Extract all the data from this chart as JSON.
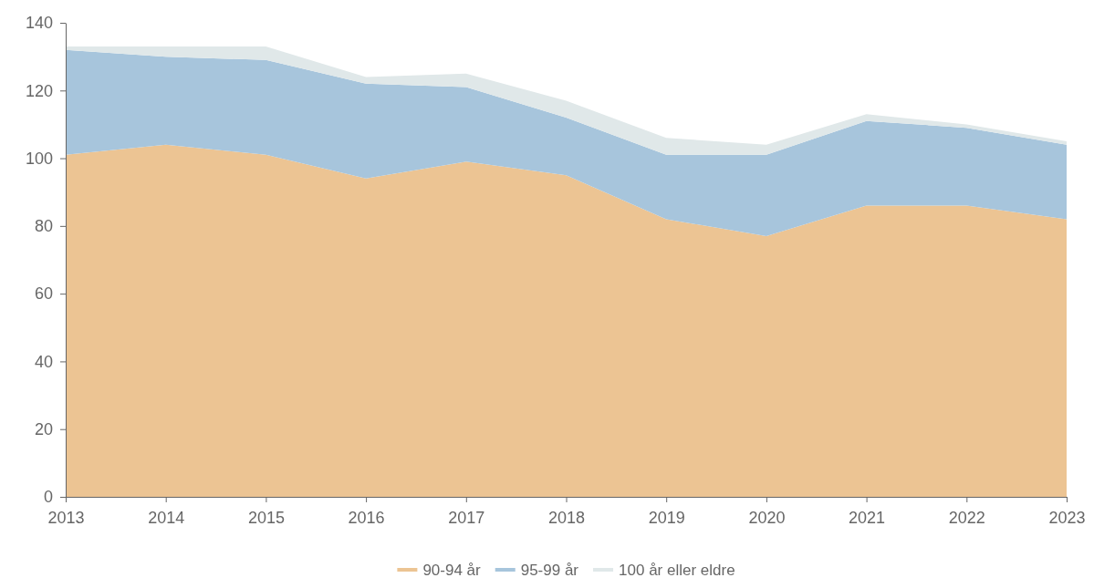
{
  "chart_data": {
    "type": "area",
    "stacked": true,
    "x": [
      2013,
      2014,
      2015,
      2016,
      2017,
      2018,
      2019,
      2020,
      2021,
      2022,
      2023
    ],
    "xlim": [
      2013,
      2023
    ],
    "xticks": [
      2013,
      2014,
      2015,
      2016,
      2017,
      2018,
      2019,
      2020,
      2021,
      2022,
      2023
    ],
    "ylim": [
      0,
      140
    ],
    "yticks": [
      0,
      20,
      40,
      60,
      80,
      100,
      120,
      140
    ],
    "grid": false,
    "legend": "bottom",
    "series": [
      {
        "name": "90-94 år",
        "color": "#ecc493",
        "values": [
          101,
          104,
          101,
          94,
          99,
          95,
          82,
          77,
          86,
          86,
          82
        ]
      },
      {
        "name": "95-99 år",
        "color": "#a7c5dc",
        "values": [
          31,
          26,
          28,
          28,
          22,
          17,
          19,
          24,
          25,
          23,
          22
        ]
      },
      {
        "name": "100 år eller eldre",
        "color": "#e0e8e9",
        "values": [
          1,
          3,
          4,
          2,
          4,
          5,
          5,
          3,
          2,
          1,
          1
        ]
      }
    ]
  }
}
